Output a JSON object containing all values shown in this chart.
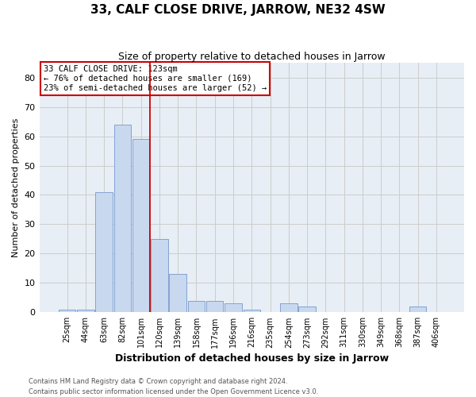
{
  "title": "33, CALF CLOSE DRIVE, JARROW, NE32 4SW",
  "subtitle": "Size of property relative to detached houses in Jarrow",
  "xlabel": "Distribution of detached houses by size in Jarrow",
  "ylabel": "Number of detached properties",
  "bar_color": "#c8d8ee",
  "bar_edge_color": "#7799cc",
  "bin_labels": [
    "25sqm",
    "44sqm",
    "63sqm",
    "82sqm",
    "101sqm",
    "120sqm",
    "139sqm",
    "158sqm",
    "177sqm",
    "196sqm",
    "216sqm",
    "235sqm",
    "254sqm",
    "273sqm",
    "292sqm",
    "311sqm",
    "330sqm",
    "349sqm",
    "368sqm",
    "387sqm",
    "406sqm"
  ],
  "bar_heights": [
    1,
    1,
    41,
    64,
    59,
    25,
    13,
    4,
    4,
    3,
    1,
    0,
    3,
    2,
    0,
    0,
    0,
    0,
    0,
    2,
    0
  ],
  "vline_color": "#cc0000",
  "vline_pos": 4.5,
  "ylim": [
    0,
    85
  ],
  "yticks": [
    0,
    10,
    20,
    30,
    40,
    50,
    60,
    70,
    80
  ],
  "annotation_text": "33 CALF CLOSE DRIVE: 123sqm\n← 76% of detached houses are smaller (169)\n23% of semi-detached houses are larger (52) →",
  "annotation_box_color": "#ffffff",
  "annotation_box_edge": "#cc0000",
  "footer_line1": "Contains HM Land Registry data © Crown copyright and database right 2024.",
  "footer_line2": "Contains public sector information licensed under the Open Government Licence v3.0.",
  "grid_color": "#cccccc",
  "background_color": "#ffffff",
  "plot_background": "#e8eef5"
}
